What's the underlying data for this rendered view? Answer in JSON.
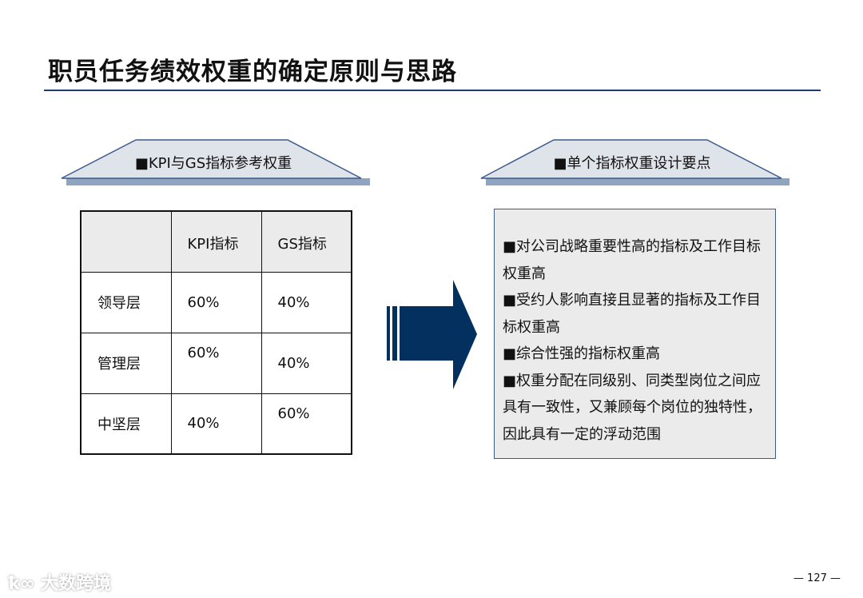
{
  "title": "职员任务绩效权重的确定原则与思路",
  "left_header": "■KPI与GS指标参考权重",
  "right_header": "■单个指标权重设计要点",
  "table": {
    "headers": [
      "",
      "KPI指标",
      "GS指标"
    ],
    "rows": [
      [
        "领导层",
        "60%",
        "40%"
      ],
      [
        "管理层",
        "60%",
        "40%"
      ],
      [
        "中坚层",
        "40%",
        "60%"
      ]
    ]
  },
  "points": [
    "■对公司战略重要性高的指标及工作目标权重高",
    "■受约人影响直接且显著的指标及工作目标权重高",
    "■综合性强的指标权重高",
    "■权重分配在同级别、同类型岗位之间应 具有一致性，又兼顾每个岗位的独特性， 因此具有一定的浮动范围"
  ],
  "page_number": "— 127 —",
  "watermark": "大数跨境",
  "colors": {
    "accent": "#03305f",
    "trapezoid": "#dfe3ea",
    "shadow": "#8fa5bf"
  }
}
